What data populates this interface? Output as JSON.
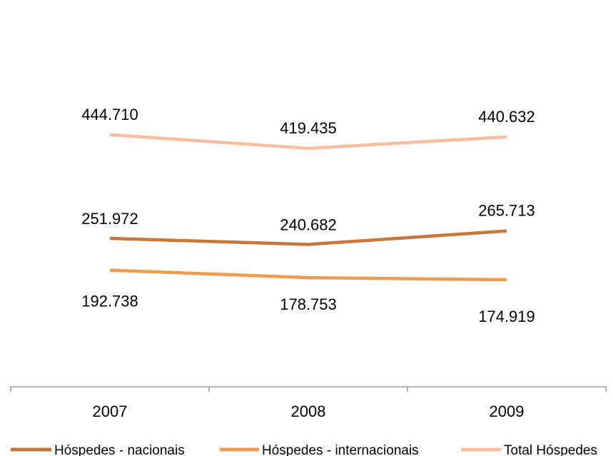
{
  "chart_data": {
    "type": "line",
    "categories": [
      "2007",
      "2008",
      "2009"
    ],
    "series": [
      {
        "name": "Hóspedes - nacionais",
        "values": [
          251972,
          240682,
          265713
        ],
        "labels": [
          "251.972",
          "240.682",
          "265.713"
        ],
        "color": "#c8763a"
      },
      {
        "name": "Hóspedes - internacionais",
        "values": [
          192738,
          178753,
          174919
        ],
        "labels": [
          "192.738",
          "178.753",
          "174.919"
        ],
        "color": "#f19a4e"
      },
      {
        "name": "Total Hóspedes",
        "values": [
          444710,
          419435,
          440632
        ],
        "labels": [
          "444.710",
          "419.435",
          "440.632"
        ],
        "color": "#f7bfa0"
      }
    ],
    "title": "",
    "xlabel": "",
    "ylabel": "",
    "y_axis_visible": false,
    "grid": false,
    "legend_position": "bottom"
  }
}
